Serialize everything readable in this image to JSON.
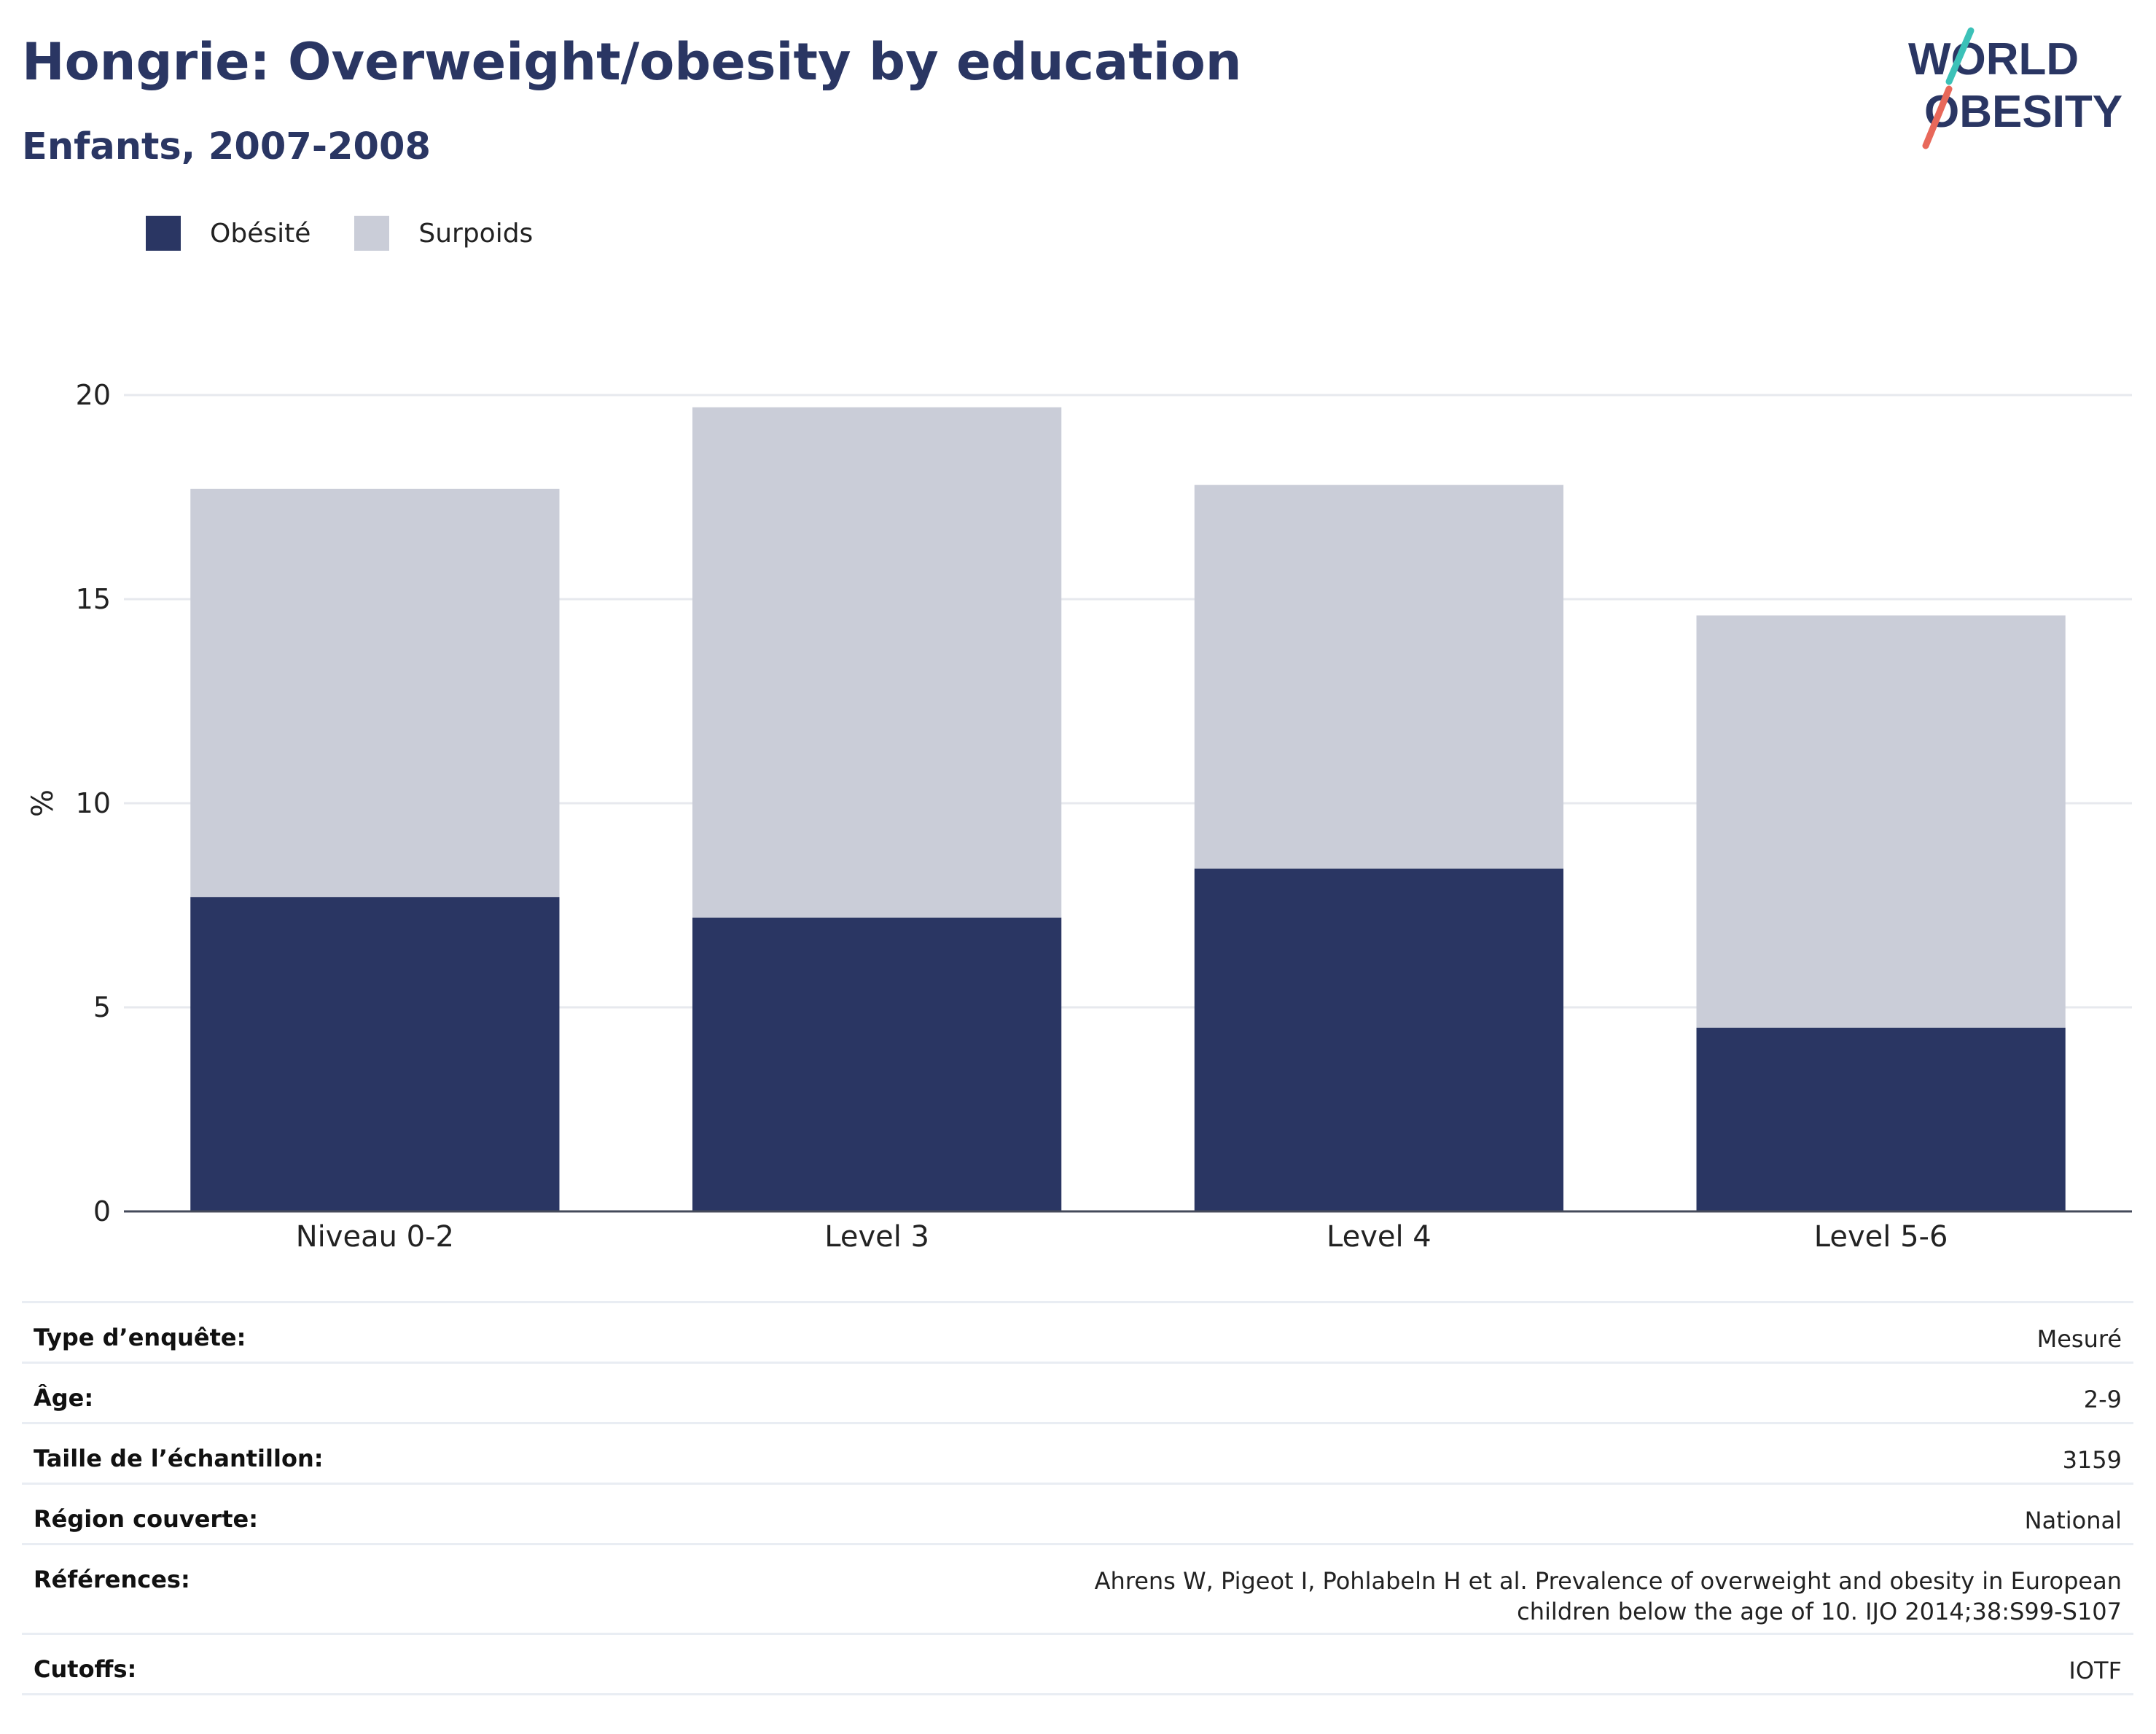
{
  "header": {
    "title": "Hongrie: Overweight/obesity by education",
    "subtitle": "Enfants, 2007-2008"
  },
  "logo": {
    "line1": "WORLD",
    "line2": "OBESITY"
  },
  "colors": {
    "obesite": "#2a3663",
    "surpoids": "#cacdd8",
    "grid": "#e7e9ee",
    "axis": "#444a5a",
    "logo_text": "#2a3663",
    "logo_accent_teal": "#3cc1b8",
    "logo_accent_coral": "#e8685a"
  },
  "chart_data": {
    "type": "bar",
    "stacked": true,
    "categories": [
      "Niveau 0-2",
      "Level 3",
      "Level 4",
      "Level 5-6"
    ],
    "series": [
      {
        "name": "Obésité",
        "values": [
          7.7,
          7.2,
          8.4,
          4.5
        ]
      },
      {
        "name": "Surpoids",
        "values": [
          10.0,
          12.5,
          9.4,
          10.1
        ]
      }
    ],
    "ylabel": "%",
    "xlabel": "",
    "ylim": [
      0,
      20
    ],
    "yticks": [
      "0",
      "5",
      "10",
      "15",
      "20"
    ],
    "grid": true,
    "legend_position": "top-left"
  },
  "meta": [
    {
      "label": "Type d’enquête:",
      "value": "Mesuré"
    },
    {
      "label": "Âge:",
      "value": "2-9"
    },
    {
      "label": "Taille de l’échantillon:",
      "value": "3159"
    },
    {
      "label": "Région couverte:",
      "value": "National"
    },
    {
      "label": "Références:",
      "value": "Ahrens W, Pigeot I, Pohlabeln H et al. Prevalence of overweight and obesity in European children below the age of 10. IJO 2014;38:S99-S107"
    },
    {
      "label": "Cutoffs:",
      "value": "IOTF"
    }
  ]
}
